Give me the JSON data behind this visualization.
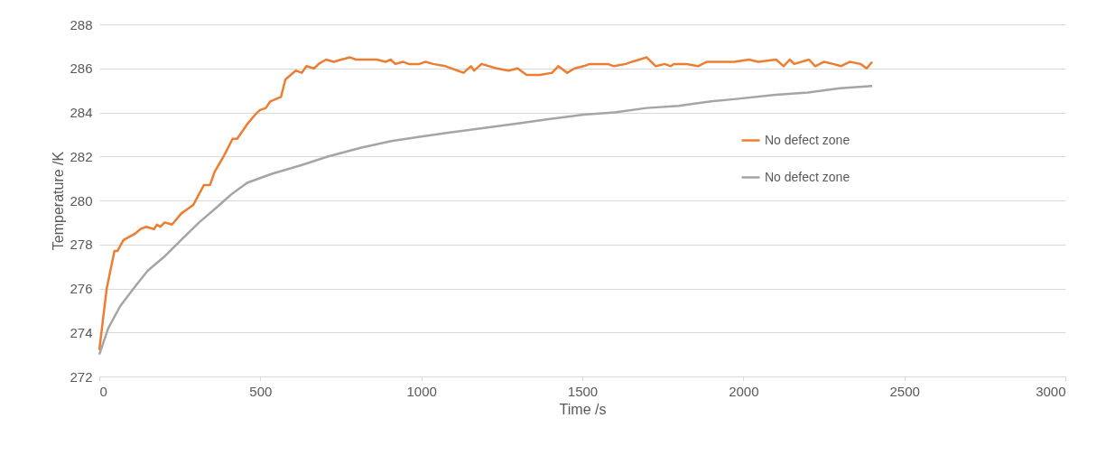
{
  "chart_data": {
    "type": "line",
    "xlabel": "Time /s",
    "ylabel": "Temperature /K",
    "xlim": [
      0,
      3000
    ],
    "xticks": [
      0,
      500,
      1000,
      1500,
      2000,
      2500,
      3000
    ],
    "ylim": [
      272,
      288
    ],
    "yticks": [
      272,
      274,
      276,
      278,
      280,
      282,
      284,
      286,
      288
    ],
    "grid": "y",
    "legend": "right",
    "marker": "none",
    "line_style": "solid",
    "series": [
      {
        "name": "No defect zone",
        "color": "#ed7d31",
        "x": [
          0,
          23,
          47,
          56,
          75,
          112,
          128,
          146,
          170,
          179,
          189,
          203,
          226,
          254,
          273,
          292,
          325,
          344,
          358,
          386,
          414,
          428,
          461,
          484,
          498,
          517,
          531,
          564,
          578,
          610,
          629,
          643,
          667,
          681,
          704,
          728,
          751,
          779,
          797,
          816,
          862,
          890,
          905,
          919,
          943,
          961,
          994,
          1013,
          1037,
          1075,
          1131,
          1154,
          1164,
          1187,
          1234,
          1271,
          1299,
          1327,
          1369,
          1406,
          1425,
          1453,
          1476,
          1504,
          1523,
          1579,
          1598,
          1635,
          1654,
          1700,
          1728,
          1756,
          1775,
          1784,
          1822,
          1859,
          1887,
          1934,
          1971,
          2018,
          2046,
          2102,
          2125,
          2144,
          2158,
          2204,
          2223,
          2251,
          2279,
          2303,
          2331,
          2364,
          2383,
          2400
        ],
        "values": [
          273.2,
          276.0,
          277.7,
          277.7,
          278.2,
          278.5,
          278.7,
          278.8,
          278.7,
          278.9,
          278.8,
          279.0,
          278.9,
          279.4,
          279.6,
          279.8,
          280.7,
          280.7,
          281.3,
          282.0,
          282.8,
          282.8,
          283.5,
          283.9,
          284.1,
          284.2,
          284.5,
          284.7,
          285.5,
          285.9,
          285.8,
          286.1,
          286.0,
          286.2,
          286.4,
          286.3,
          286.4,
          286.5,
          286.4,
          286.4,
          286.4,
          286.3,
          286.4,
          286.2,
          286.3,
          286.2,
          286.2,
          286.3,
          286.2,
          286.1,
          285.8,
          286.1,
          285.9,
          286.2,
          286.0,
          285.9,
          286.0,
          285.7,
          285.7,
          285.8,
          286.1,
          285.8,
          286.0,
          286.1,
          286.2,
          286.2,
          286.1,
          286.2,
          286.3,
          286.5,
          286.1,
          286.2,
          286.1,
          286.2,
          286.2,
          286.1,
          286.3,
          286.3,
          286.3,
          286.4,
          286.3,
          286.4,
          286.1,
          286.4,
          286.2,
          286.4,
          286.1,
          286.3,
          286.2,
          286.1,
          286.3,
          286.2,
          286.0,
          286.3
        ]
      },
      {
        "name": "No defect zone",
        "color": "#a5a5a5",
        "x": [
          0,
          28,
          65,
          112,
          150,
          206,
          254,
          310,
          366,
          412,
          459,
          534,
          627,
          711,
          814,
          907,
          1000,
          1093,
          1200,
          1300,
          1400,
          1504,
          1600,
          1700,
          1800,
          1900,
          1971,
          2100,
          2200,
          2300,
          2400
        ],
        "values": [
          273.0,
          274.2,
          275.2,
          276.1,
          276.8,
          277.5,
          278.2,
          279.0,
          279.7,
          280.3,
          280.8,
          281.2,
          281.6,
          282.0,
          282.4,
          282.7,
          282.9,
          283.1,
          283.3,
          283.5,
          283.7,
          283.9,
          284.0,
          284.2,
          284.3,
          284.5,
          284.6,
          284.8,
          284.9,
          285.1,
          285.2
        ]
      }
    ]
  }
}
